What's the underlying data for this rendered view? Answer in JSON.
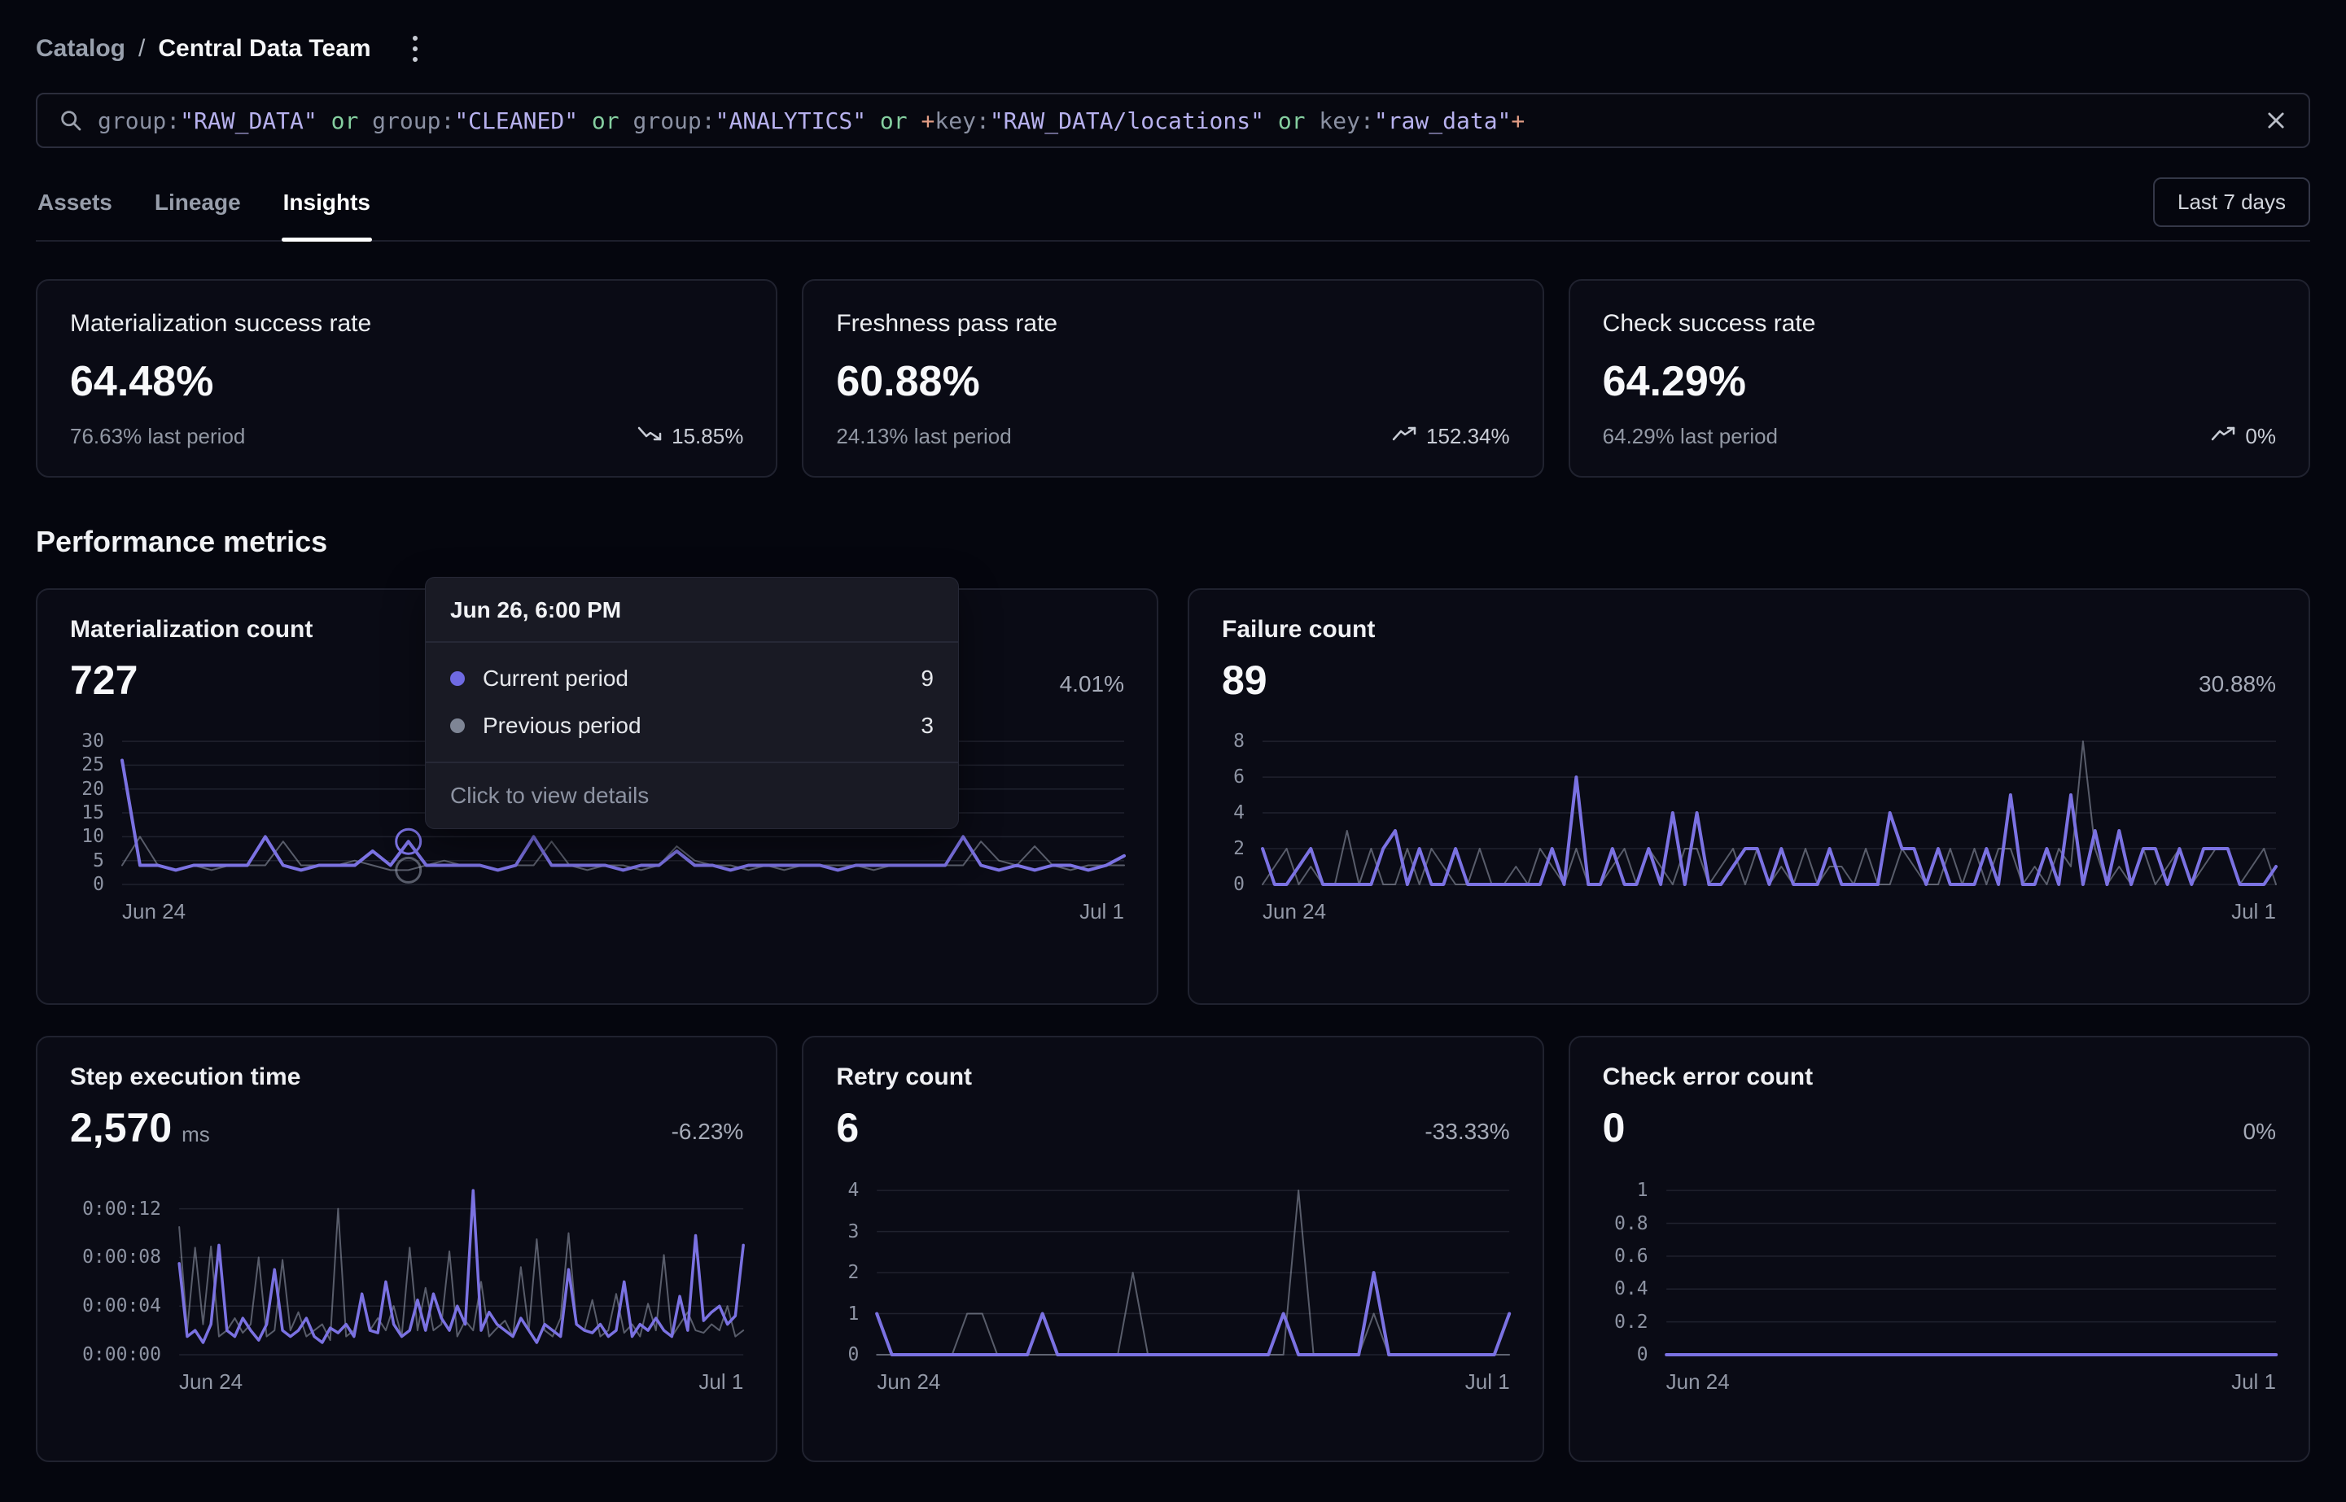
{
  "breadcrumb": {
    "section": "Catalog",
    "separator": "/",
    "title": "Central Data Team"
  },
  "search": {
    "syntax_colors": {
      "key": "#8a90a2",
      "string": "#b7b1ee",
      "operator": "#85cfa0",
      "plus": "#e29d85"
    },
    "tokens": [
      {
        "text": "group:",
        "type": "key"
      },
      {
        "text": "\"RAW_DATA\"",
        "type": "string"
      },
      {
        "text": " or ",
        "type": "operator"
      },
      {
        "text": "group:",
        "type": "key"
      },
      {
        "text": "\"CLEANED\"",
        "type": "string"
      },
      {
        "text": " or ",
        "type": "operator"
      },
      {
        "text": "group:",
        "type": "key"
      },
      {
        "text": "\"ANALYTICS\"",
        "type": "string"
      },
      {
        "text": " or ",
        "type": "operator"
      },
      {
        "text": "+",
        "type": "plus"
      },
      {
        "text": "key:",
        "type": "key"
      },
      {
        "text": "\"RAW_DATA/locations\"",
        "type": "string"
      },
      {
        "text": " or ",
        "type": "operator"
      },
      {
        "text": "key:",
        "type": "key"
      },
      {
        "text": "\"raw_data\"",
        "type": "string"
      },
      {
        "text": "+",
        "type": "plus"
      }
    ]
  },
  "tabs": [
    {
      "label": "Assets",
      "active": false
    },
    {
      "label": "Lineage",
      "active": false
    },
    {
      "label": "Insights",
      "active": true
    }
  ],
  "time_range_button": "Last 7 days",
  "summary": [
    {
      "title": "Materialization success rate",
      "value": "64.48%",
      "last_period": "76.63% last period",
      "change": "15.85%",
      "trend": "down"
    },
    {
      "title": "Freshness pass rate",
      "value": "60.88%",
      "last_period": "24.13% last period",
      "change": "152.34%",
      "trend": "up"
    },
    {
      "title": "Check success rate",
      "value": "64.29%",
      "last_period": "64.29% last period",
      "change": "0%",
      "trend": "up"
    }
  ],
  "section_title": "Performance metrics",
  "tooltip": {
    "title": "Jun 26, 6:00 PM",
    "rows": [
      {
        "label": "Current period",
        "value": "9",
        "color": "#6f6ae2"
      },
      {
        "label": "Previous period",
        "value": "3",
        "color": "#7e8595"
      }
    ],
    "footer": "Click to view details"
  },
  "chart_data": [
    {
      "type": "line",
      "title": "Materialization count",
      "value": "727",
      "value_suffix": "",
      "change": "4.01%",
      "x_labels": [
        "Jun 24",
        "Jul 1"
      ],
      "xlim": [
        "Jun 24",
        "Jul 1"
      ],
      "yticks": [
        {
          "v": 30,
          "label": "30"
        },
        {
          "v": 25,
          "label": "25"
        },
        {
          "v": 20,
          "label": "20"
        },
        {
          "v": 15,
          "label": "15"
        },
        {
          "v": 10,
          "label": "10"
        },
        {
          "v": 5,
          "label": "5"
        },
        {
          "v": 0,
          "label": "0"
        }
      ],
      "series": [
        {
          "name": "Current period",
          "color": "#7b72e2",
          "width": 4,
          "values": [
            26,
            4,
            4,
            3,
            4,
            4,
            4,
            4,
            10,
            4,
            3,
            4,
            4,
            4,
            7,
            4,
            9,
            4,
            4,
            4,
            4,
            3,
            4,
            10,
            4,
            4,
            4,
            4,
            3,
            4,
            4,
            7,
            4,
            4,
            3,
            4,
            4,
            4,
            4,
            4,
            3,
            4,
            4,
            4,
            4,
            4,
            4,
            10,
            4,
            3,
            4,
            3,
            4,
            4,
            3,
            4,
            6
          ]
        },
        {
          "name": "Previous period",
          "color": "#99a0b0",
          "opacity": 0.55,
          "width": 2,
          "values": [
            4,
            10,
            4,
            3,
            4,
            3,
            4,
            4,
            4,
            9,
            4,
            4,
            4,
            5,
            4,
            3,
            3,
            4,
            5,
            4,
            4,
            3,
            4,
            4,
            9,
            4,
            3,
            4,
            4,
            3,
            4,
            8,
            5,
            4,
            4,
            3,
            4,
            3,
            4,
            4,
            4,
            4,
            3,
            4,
            4,
            4,
            4,
            4,
            9,
            5,
            4,
            8,
            4,
            3,
            4,
            4,
            4
          ]
        }
      ],
      "markers": [
        {
          "series": 0,
          "index": 16
        },
        {
          "series": 1,
          "index": 16
        }
      ]
    },
    {
      "type": "line",
      "title": "Failure count",
      "value": "89",
      "value_suffix": "",
      "change": "30.88%",
      "x_labels": [
        "Jun 24",
        "Jul 1"
      ],
      "yticks": [
        {
          "v": 8,
          "label": "8"
        },
        {
          "v": 6,
          "label": "6"
        },
        {
          "v": 4,
          "label": "4"
        },
        {
          "v": 2,
          "label": "2"
        },
        {
          "v": 0,
          "label": "0"
        }
      ],
      "series": [
        {
          "name": "Current period",
          "color": "#7b72e2",
          "width": 4,
          "values": [
            2,
            0,
            0,
            1,
            2,
            0,
            0,
            0,
            0,
            0,
            2,
            3,
            0,
            2,
            0,
            0,
            2,
            0,
            0,
            0,
            0,
            0,
            0,
            0,
            2,
            0,
            6,
            0,
            0,
            2,
            0,
            0,
            2,
            0,
            4,
            0,
            4,
            0,
            0,
            1,
            2,
            2,
            0,
            2,
            0,
            0,
            0,
            2,
            0,
            0,
            0,
            0,
            4,
            2,
            2,
            0,
            2,
            0,
            0,
            0,
            2,
            0,
            5,
            0,
            0,
            2,
            0,
            5,
            0,
            3,
            0,
            3,
            0,
            2,
            2,
            0,
            2,
            0,
            2,
            2,
            2,
            0,
            0,
            0,
            1
          ]
        },
        {
          "name": "Previous period",
          "color": "#99a0b0",
          "opacity": 0.55,
          "width": 2,
          "values": [
            0,
            1,
            2,
            0,
            1,
            0,
            0,
            3,
            0,
            2,
            0,
            0,
            2,
            0,
            2,
            1,
            0,
            0,
            2,
            0,
            0,
            1,
            0,
            2,
            1,
            0,
            2,
            0,
            0,
            1,
            2,
            0,
            2,
            1,
            0,
            2,
            2,
            0,
            1,
            2,
            0,
            2,
            0,
            1,
            0,
            2,
            0,
            1,
            1,
            0,
            2,
            0,
            0,
            2,
            1,
            0,
            0,
            2,
            0,
            2,
            0,
            2,
            2,
            0,
            1,
            0,
            2,
            1,
            8,
            2,
            0,
            1,
            0,
            2,
            0,
            1,
            2,
            0,
            1,
            2,
            2,
            0,
            1,
            2,
            0
          ]
        }
      ],
      "markers": []
    },
    {
      "type": "line",
      "title": "Step execution time",
      "value": "2,570",
      "value_suffix": "ms",
      "change": "-6.23%",
      "x_labels": [
        "Jun 24",
        "Jul 1"
      ],
      "yticks": [
        {
          "v": 12,
          "label": "0:00:12"
        },
        {
          "v": 8,
          "label": "0:00:08"
        },
        {
          "v": 4,
          "label": "0:00:04"
        },
        {
          "v": 0,
          "label": "0:00:00"
        }
      ],
      "series": [
        {
          "name": "Current period",
          "color": "#7b72e2",
          "width": 3.5,
          "values": [
            7.5,
            1.5,
            2,
            1,
            2.5,
            9,
            2,
            1.5,
            3,
            2,
            1.2,
            2.5,
            7,
            2,
            1.5,
            2,
            3,
            1.5,
            1,
            2.2,
            1.8,
            2.5,
            1.5,
            5,
            2,
            1.8,
            6,
            2.5,
            1.5,
            2,
            4.5,
            2,
            5,
            3,
            2,
            4,
            2.5,
            13.5,
            2,
            3.5,
            2.5,
            2,
            1.5,
            3,
            2,
            1,
            2.5,
            2,
            1.5,
            7,
            2.5,
            2,
            1.8,
            2.5,
            1.5,
            2,
            6,
            1.5,
            2.5,
            2,
            3,
            2,
            1.5,
            4.8,
            2,
            9.8,
            2.8,
            3.5,
            4,
            2.5,
            3.2,
            9
          ]
        },
        {
          "name": "Previous period",
          "color": "#99a0b0",
          "opacity": 0.55,
          "width": 2,
          "values": [
            10.5,
            2,
            8.8,
            2.5,
            8.9,
            1.5,
            2,
            3,
            1.8,
            2.5,
            8,
            1.5,
            2,
            7.8,
            2,
            3.5,
            1.5,
            2,
            2.5,
            1.2,
            12,
            1.5,
            2,
            5,
            2,
            3,
            2,
            4,
            1.5,
            8.8,
            2,
            5.5,
            2,
            2.5,
            8.5,
            1.5,
            2.8,
            2,
            6,
            1.5,
            2.2,
            2.8,
            1.5,
            7.2,
            2,
            9.5,
            2,
            1.5,
            3,
            10,
            2.5,
            2,
            4.5,
            1.5,
            2,
            5,
            1.8,
            2.5,
            1.5,
            4.2,
            2,
            8.2,
            1.5,
            2.5,
            3.5,
            2,
            1.8,
            2.5,
            2,
            4,
            1.5,
            2
          ]
        }
      ],
      "markers": []
    },
    {
      "type": "line",
      "title": "Retry count",
      "value": "6",
      "value_suffix": "",
      "change": "-33.33%",
      "x_labels": [
        "Jun 24",
        "Jul 1"
      ],
      "yticks": [
        {
          "v": 4,
          "label": "4"
        },
        {
          "v": 3,
          "label": "3"
        },
        {
          "v": 2,
          "label": "2"
        },
        {
          "v": 1,
          "label": "1"
        },
        {
          "v": 0,
          "label": "0"
        }
      ],
      "series": [
        {
          "name": "Current period",
          "color": "#7b72e2",
          "width": 4,
          "values": [
            1,
            0,
            0,
            0,
            0,
            0,
            0,
            0,
            0,
            0,
            0,
            1,
            0,
            0,
            0,
            0,
            0,
            0,
            0,
            0,
            0,
            0,
            0,
            0,
            0,
            0,
            0,
            1,
            0,
            0,
            0,
            0,
            0,
            2,
            0,
            0,
            0,
            0,
            0,
            0,
            0,
            0,
            1
          ]
        },
        {
          "name": "Previous period",
          "color": "#99a0b0",
          "opacity": 0.55,
          "width": 2,
          "values": [
            0,
            0,
            0,
            0,
            0,
            0,
            1,
            1,
            0,
            0,
            0,
            0,
            0,
            0,
            0,
            0,
            0,
            2,
            0,
            0,
            0,
            0,
            0,
            0,
            0,
            0,
            0,
            0,
            4,
            0,
            0,
            0,
            0,
            1,
            0,
            0,
            0,
            0,
            0,
            0,
            0,
            0,
            0
          ]
        }
      ],
      "markers": []
    },
    {
      "type": "line",
      "title": "Check error count",
      "value": "0",
      "value_suffix": "",
      "change": "0%",
      "x_labels": [
        "Jun 24",
        "Jul 1"
      ],
      "yticks": [
        {
          "v": 1,
          "label": "1"
        },
        {
          "v": 0.8,
          "label": "0.8"
        },
        {
          "v": 0.6,
          "label": "0.6"
        },
        {
          "v": 0.4,
          "label": "0.4"
        },
        {
          "v": 0.2,
          "label": "0.2"
        },
        {
          "v": 0,
          "label": "0"
        }
      ],
      "series": [
        {
          "name": "Current period",
          "color": "#7b72e2",
          "width": 4,
          "values": [
            0,
            0,
            0,
            0,
            0,
            0,
            0,
            0,
            0,
            0,
            0,
            0,
            0,
            0,
            0,
            0,
            0,
            0,
            0,
            0,
            0,
            0,
            0,
            0,
            0,
            0,
            0,
            0,
            0,
            0
          ]
        }
      ],
      "markers": []
    }
  ]
}
